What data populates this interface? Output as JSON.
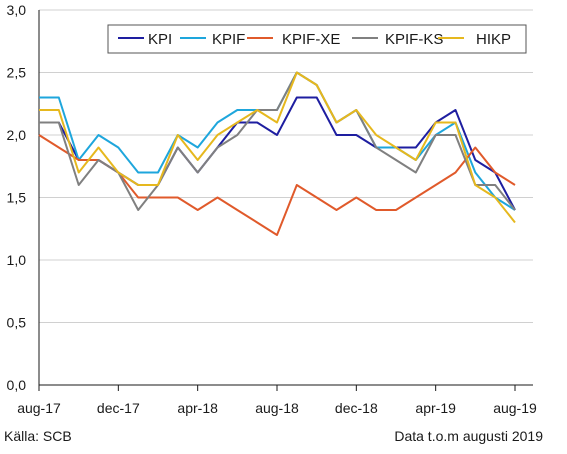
{
  "chart_data": {
    "type": "line",
    "title": "",
    "xlabel": "",
    "ylabel": "",
    "ylim": [
      0,
      3
    ],
    "y_ticks": [
      "0,0",
      "0,5",
      "1,0",
      "1,5",
      "2,0",
      "2,5",
      "3,0"
    ],
    "x": [
      "aug-17",
      "sep-17",
      "okt-17",
      "nov-17",
      "dec-17",
      "jan-18",
      "feb-18",
      "mar-18",
      "apr-18",
      "maj-18",
      "jun-18",
      "jul-18",
      "aug-18",
      "sep-18",
      "okt-18",
      "nov-18",
      "dec-18",
      "jan-19",
      "feb-19",
      "mar-19",
      "apr-19",
      "maj-19",
      "jun-19",
      "jul-19",
      "aug-19"
    ],
    "x_tick_labels": [
      "aug-17",
      "dec-17",
      "apr-18",
      "aug-18",
      "dec-18",
      "apr-19",
      "aug-19"
    ],
    "grid": "horizontal",
    "legend_position": "top-right",
    "series": [
      {
        "name": "KPI",
        "color": "#1e1ea0",
        "values": [
          2.1,
          2.1,
          1.8,
          1.8,
          1.7,
          1.6,
          1.6,
          1.9,
          1.7,
          1.9,
          2.1,
          2.1,
          2.0,
          2.3,
          2.3,
          2.0,
          2.0,
          1.9,
          1.9,
          1.9,
          2.1,
          2.2,
          1.8,
          1.7,
          1.4
        ]
      },
      {
        "name": "KPIF",
        "color": "#1ea6dc",
        "values": [
          2.3,
          2.3,
          1.8,
          2.0,
          1.9,
          1.7,
          1.7,
          2.0,
          1.9,
          2.1,
          2.2,
          2.2,
          2.2,
          2.5,
          2.4,
          2.1,
          2.2,
          1.9,
          1.9,
          1.8,
          2.0,
          2.1,
          1.7,
          1.5,
          1.4
        ]
      },
      {
        "name": "KPIF-XE",
        "color": "#e05a2b",
        "values": [
          2.0,
          1.9,
          1.8,
          1.8,
          1.7,
          1.5,
          1.5,
          1.5,
          1.4,
          1.5,
          1.4,
          1.3,
          1.2,
          1.6,
          1.5,
          1.4,
          1.5,
          1.4,
          1.4,
          1.5,
          1.6,
          1.7,
          1.9,
          1.7,
          1.6
        ]
      },
      {
        "name": "KPIF-KS",
        "color": "#808080",
        "values": [
          2.1,
          2.1,
          1.6,
          1.8,
          1.7,
          1.4,
          1.6,
          1.9,
          1.7,
          1.9,
          2.0,
          2.2,
          2.2,
          2.5,
          2.4,
          2.1,
          2.2,
          1.9,
          1.8,
          1.7,
          2.0,
          2.0,
          1.6,
          1.6,
          1.4
        ]
      },
      {
        "name": "HIKP",
        "color": "#e6b81e",
        "values": [
          2.2,
          2.2,
          1.7,
          1.9,
          1.7,
          1.6,
          1.6,
          2.0,
          1.8,
          2.0,
          2.1,
          2.2,
          2.1,
          2.5,
          2.4,
          2.1,
          2.2,
          2.0,
          1.9,
          1.8,
          2.1,
          2.1,
          1.6,
          1.5,
          1.3
        ]
      }
    ]
  },
  "footer": {
    "source": "Källa: SCB",
    "note": "Data t.o.m augusti 2019"
  }
}
